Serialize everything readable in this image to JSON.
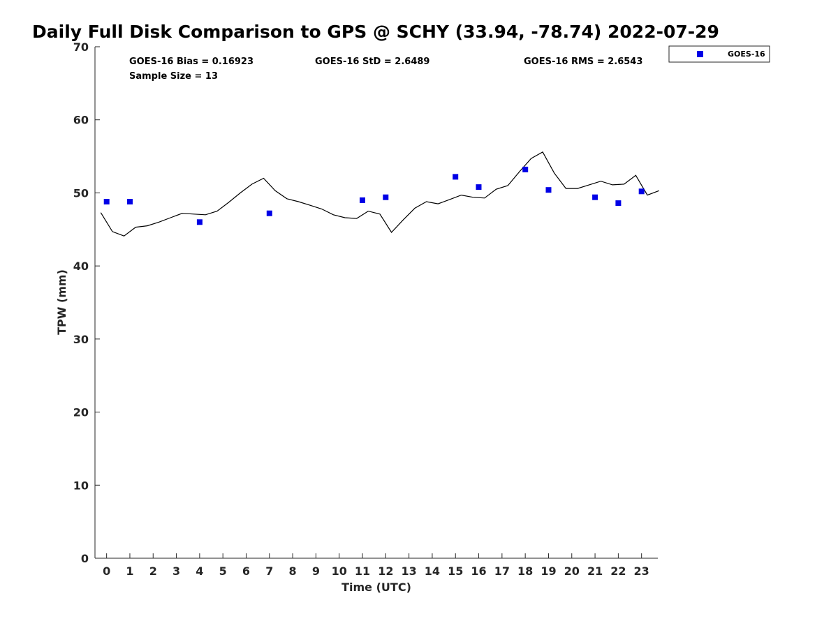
{
  "chart_data": {
    "type": "scatter",
    "title": "Daily Full Disk Comparison to GPS @ SCHY (33.94, -78.74) 2022-07-29",
    "xlabel": "Time (UTC)",
    "ylabel": "TPW (mm)",
    "xlim": [
      -0.5,
      23.7
    ],
    "ylim": [
      0,
      70
    ],
    "xticks": [
      0,
      1,
      2,
      3,
      4,
      5,
      6,
      7,
      8,
      9,
      10,
      11,
      12,
      13,
      14,
      15,
      16,
      17,
      18,
      19,
      20,
      21,
      22,
      23
    ],
    "yticks": [
      0,
      10,
      20,
      30,
      40,
      50,
      60,
      70
    ],
    "grid": false,
    "legend_position": "outside-top-right",
    "colors": {
      "goes": "#0000e6",
      "gps": "#000000"
    },
    "series": [
      {
        "name": "GOES-16",
        "kind": "scatter",
        "x": [
          0.0,
          1.0,
          4.0,
          7.0,
          11.0,
          12.0,
          15.0,
          16.0,
          18.0,
          19.0,
          21.0,
          22.0,
          23.0
        ],
        "y": [
          48.8,
          48.8,
          46.0,
          47.2,
          49.0,
          49.4,
          52.2,
          50.8,
          53.2,
          50.4,
          49.4,
          48.6,
          50.2
        ]
      },
      {
        "kind": "line",
        "x": [
          -0.25,
          0.25,
          0.75,
          1.25,
          1.75,
          2.25,
          2.75,
          3.25,
          3.75,
          4.25,
          4.75,
          5.25,
          5.75,
          6.25,
          6.75,
          7.25,
          7.75,
          8.25,
          8.75,
          9.25,
          9.75,
          10.25,
          10.75,
          11.25,
          11.75,
          12.25,
          12.75,
          13.25,
          13.75,
          14.25,
          14.75,
          15.25,
          15.75,
          16.25,
          16.75,
          17.25,
          17.75,
          18.25,
          18.75,
          19.25,
          19.75,
          20.25,
          20.75,
          21.25,
          21.75,
          22.25,
          22.75,
          23.25,
          23.75
        ],
        "y": [
          47.3,
          44.7,
          44.1,
          45.3,
          45.5,
          46.0,
          46.6,
          47.2,
          47.1,
          47.0,
          47.5,
          48.7,
          50.0,
          51.2,
          52.0,
          50.3,
          49.2,
          48.8,
          48.3,
          47.8,
          47.0,
          46.6,
          46.5,
          47.5,
          47.1,
          44.6,
          46.3,
          47.9,
          48.8,
          48.5,
          49.1,
          49.7,
          49.4,
          49.3,
          50.5,
          51.0,
          52.9,
          54.7,
          55.6,
          52.7,
          50.6,
          50.6,
          51.1,
          51.6,
          51.1,
          51.2,
          52.4,
          49.7,
          50.3
        ]
      }
    ],
    "annotations": {
      "bias": "GOES-16 Bias = 0.16923",
      "std": "GOES-16 StD = 2.6489",
      "rms": "GOES-16 RMS = 2.6543",
      "sample": "Sample Size = 13"
    }
  }
}
